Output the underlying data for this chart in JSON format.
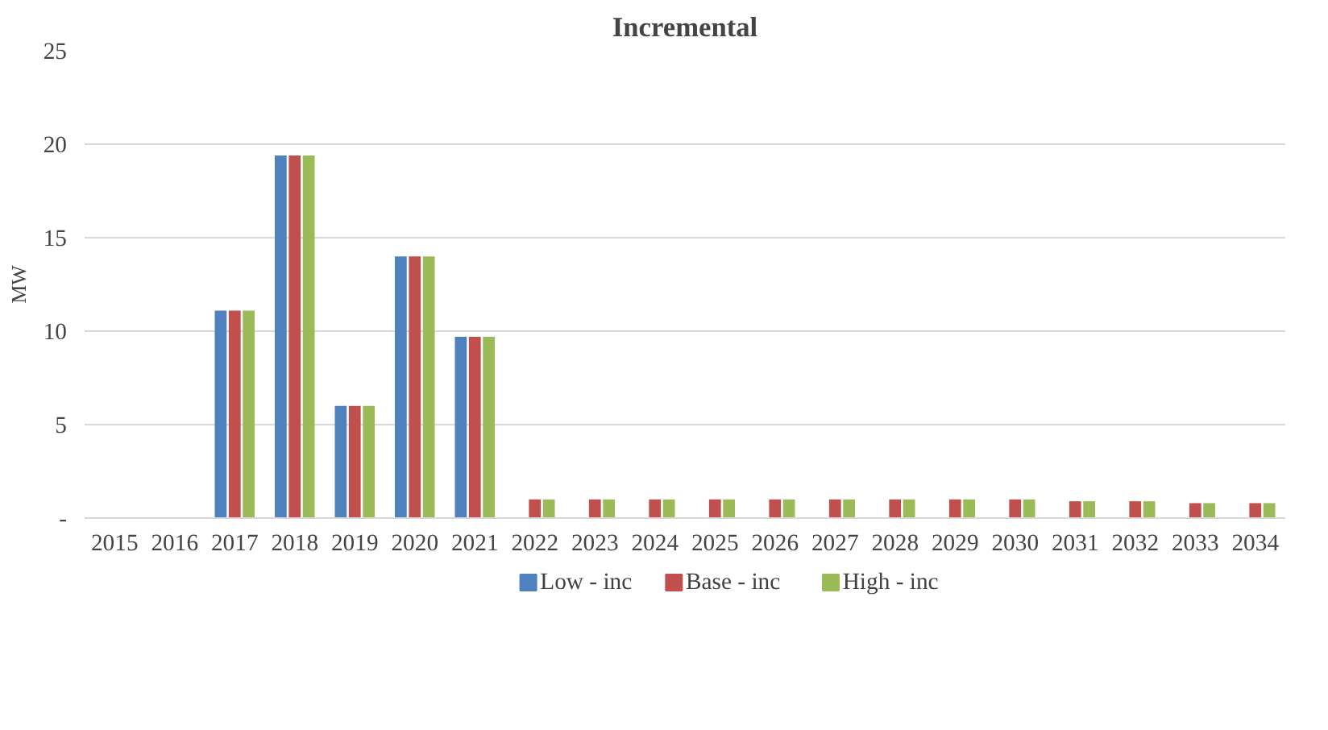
{
  "chart_data": {
    "type": "bar",
    "title": "Incremental",
    "ylabel": "MW",
    "categories": [
      "2015",
      "2016",
      "2017",
      "2018",
      "2019",
      "2020",
      "2021",
      "2022",
      "2023",
      "2024",
      "2025",
      "2026",
      "2027",
      "2028",
      "2029",
      "2030",
      "2031",
      "2032",
      "2033",
      "2034"
    ],
    "series": [
      {
        "name": "Low - inc",
        "color": "#4f81bd",
        "values": [
          0,
          0,
          11.1,
          19.4,
          6.0,
          14.0,
          9.7,
          0,
          0,
          0,
          0,
          0,
          0,
          0,
          0,
          0,
          0,
          0,
          0,
          0
        ]
      },
      {
        "name": "Base - inc",
        "color": "#c0504d",
        "values": [
          0,
          0,
          11.1,
          19.4,
          6.0,
          14.0,
          9.7,
          1.0,
          1.0,
          1.0,
          1.0,
          1.0,
          1.0,
          1.0,
          1.0,
          1.0,
          0.9,
          0.9,
          0.8,
          0.8
        ]
      },
      {
        "name": "High - inc",
        "color": "#9bbb59",
        "values": [
          0,
          0,
          11.1,
          19.4,
          6.0,
          14.0,
          9.7,
          1.0,
          1.0,
          1.0,
          1.0,
          1.0,
          1.0,
          1.0,
          1.0,
          1.0,
          0.9,
          0.9,
          0.8,
          0.8
        ]
      }
    ],
    "ylim": [
      0,
      25
    ],
    "yticks": [
      {
        "value": 0,
        "label": "-"
      },
      5,
      10,
      15,
      20,
      25
    ],
    "grid": "y",
    "legend": "bottom"
  }
}
